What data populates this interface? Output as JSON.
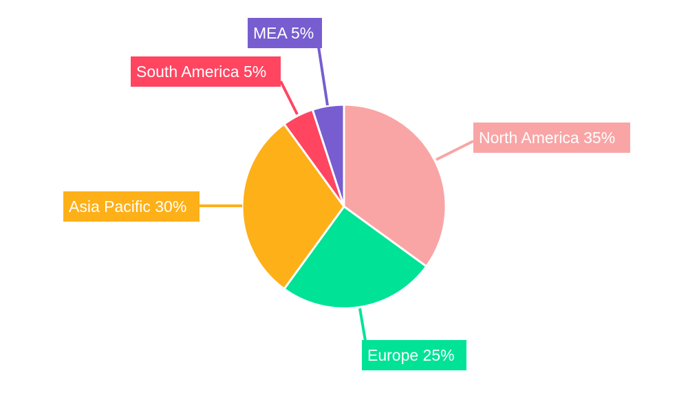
{
  "chart_data": {
    "type": "pie",
    "title": "",
    "start_angle": "12 o'clock, clockwise",
    "legend": "none",
    "slices": [
      {
        "label": "North America",
        "value": 35,
        "text": "North America 35%",
        "color": "#f9a5a5"
      },
      {
        "label": "Europe",
        "value": 25,
        "text": "Europe 25%",
        "color": "#00e396"
      },
      {
        "label": "Asia Pacific",
        "value": 30,
        "text": "Asia Pacific 30%",
        "color": "#feb019"
      },
      {
        "label": "South America",
        "value": 5,
        "text": "South America 5%",
        "color": "#ff4560"
      },
      {
        "label": "MEA",
        "value": 5,
        "text": "MEA 5%",
        "color": "#775dd0"
      }
    ]
  }
}
